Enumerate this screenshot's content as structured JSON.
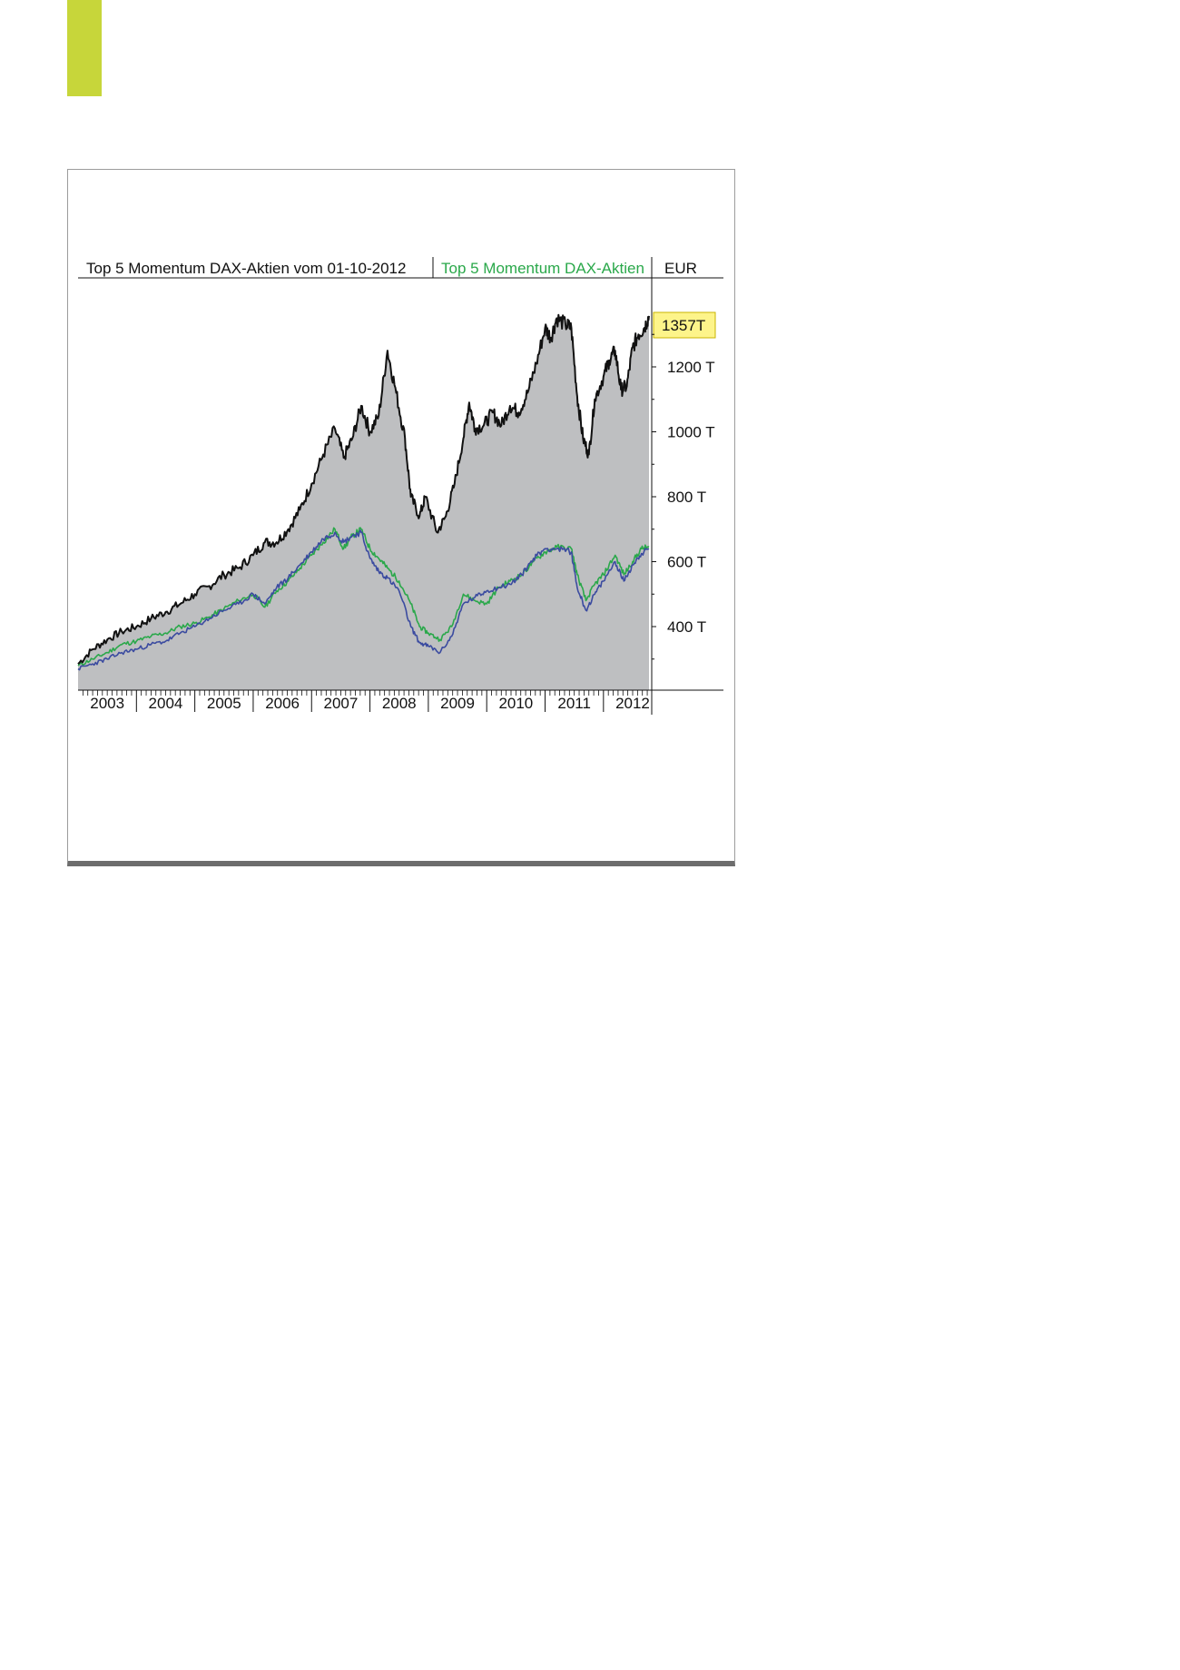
{
  "page": {
    "accent_color": "#c7d63a"
  },
  "chart_data": {
    "type": "area",
    "title": "Top 5 Momentum DAX-Aktien vom 01-10-2012",
    "currency": "EUR",
    "last_value_label": "1357T",
    "yticks": [
      "400 T",
      "600 T",
      "800 T",
      "1000 T",
      "1200 T"
    ],
    "ytick_values": [
      400,
      600,
      800,
      1000,
      1200
    ],
    "ylim": [
      250,
      1400
    ],
    "xlim": [
      2003.0,
      2012.78
    ],
    "xticks": [
      "2003",
      "2004",
      "2005",
      "2006",
      "2007",
      "2008",
      "2009",
      "2010",
      "2011",
      "2012"
    ],
    "colors": {
      "area_fill": "#bebfc1",
      "main_line": "#111111",
      "green_line": "#2aa84a",
      "blue_line": "#3b4ba0",
      "label_highlight": "#fdf48a",
      "green_label": "#2aa84a"
    },
    "series": [
      {
        "name": "Top 5 Momentum DAX-Aktien vom 01-10-2012",
        "color": "#111111",
        "points": [
          [
            2003.0,
            285
          ],
          [
            2003.25,
            330
          ],
          [
            2003.5,
            360
          ],
          [
            2003.75,
            385
          ],
          [
            2004.0,
            400
          ],
          [
            2004.25,
            425
          ],
          [
            2004.5,
            445
          ],
          [
            2004.75,
            470
          ],
          [
            2005.0,
            500
          ],
          [
            2005.25,
            525
          ],
          [
            2005.5,
            560
          ],
          [
            2005.75,
            580
          ],
          [
            2006.0,
            620
          ],
          [
            2006.2,
            660
          ],
          [
            2006.4,
            660
          ],
          [
            2006.6,
            700
          ],
          [
            2006.8,
            760
          ],
          [
            2007.0,
            840
          ],
          [
            2007.2,
            930
          ],
          [
            2007.4,
            1010
          ],
          [
            2007.55,
            920
          ],
          [
            2007.7,
            980
          ],
          [
            2007.85,
            1080
          ],
          [
            2008.0,
            1000
          ],
          [
            2008.15,
            1050
          ],
          [
            2008.3,
            1250
          ],
          [
            2008.45,
            1120
          ],
          [
            2008.6,
            980
          ],
          [
            2008.7,
            800
          ],
          [
            2008.85,
            740
          ],
          [
            2008.95,
            800
          ],
          [
            2009.15,
            690
          ],
          [
            2009.3,
            740
          ],
          [
            2009.45,
            840
          ],
          [
            2009.6,
            980
          ],
          [
            2009.7,
            1090
          ],
          [
            2009.8,
            1010
          ],
          [
            2009.95,
            1020
          ],
          [
            2010.1,
            1060
          ],
          [
            2010.25,
            1020
          ],
          [
            2010.4,
            1080
          ],
          [
            2010.55,
            1060
          ],
          [
            2010.7,
            1120
          ],
          [
            2010.85,
            1210
          ],
          [
            2011.0,
            1320
          ],
          [
            2011.1,
            1290
          ],
          [
            2011.2,
            1350
          ],
          [
            2011.35,
            1330
          ],
          [
            2011.45,
            1320
          ],
          [
            2011.55,
            1110
          ],
          [
            2011.65,
            980
          ],
          [
            2011.75,
            930
          ],
          [
            2011.85,
            1100
          ],
          [
            2012.0,
            1170
          ],
          [
            2012.1,
            1220
          ],
          [
            2012.2,
            1250
          ],
          [
            2012.3,
            1130
          ],
          [
            2012.4,
            1140
          ],
          [
            2012.5,
            1260
          ],
          [
            2012.6,
            1300
          ],
          [
            2012.7,
            1320
          ],
          [
            2012.78,
            1357
          ]
        ]
      },
      {
        "name": "Top 5 Momentum DAX-Aktien",
        "color": "#2aa84a",
        "points": [
          [
            2003.0,
            280
          ],
          [
            2003.25,
            300
          ],
          [
            2003.5,
            320
          ],
          [
            2003.75,
            345
          ],
          [
            2004.0,
            355
          ],
          [
            2004.25,
            370
          ],
          [
            2004.5,
            380
          ],
          [
            2004.75,
            400
          ],
          [
            2005.0,
            410
          ],
          [
            2005.25,
            430
          ],
          [
            2005.5,
            455
          ],
          [
            2005.75,
            480
          ],
          [
            2006.0,
            500
          ],
          [
            2006.2,
            460
          ],
          [
            2006.4,
            510
          ],
          [
            2006.6,
            540
          ],
          [
            2006.8,
            580
          ],
          [
            2007.0,
            620
          ],
          [
            2007.2,
            660
          ],
          [
            2007.4,
            700
          ],
          [
            2007.55,
            640
          ],
          [
            2007.7,
            680
          ],
          [
            2007.85,
            700
          ],
          [
            2008.0,
            640
          ],
          [
            2008.15,
            610
          ],
          [
            2008.3,
            580
          ],
          [
            2008.5,
            540
          ],
          [
            2008.7,
            470
          ],
          [
            2008.85,
            400
          ],
          [
            2009.0,
            380
          ],
          [
            2009.2,
            360
          ],
          [
            2009.4,
            400
          ],
          [
            2009.6,
            500
          ],
          [
            2009.8,
            480
          ],
          [
            2010.0,
            470
          ],
          [
            2010.2,
            520
          ],
          [
            2010.4,
            540
          ],
          [
            2010.6,
            560
          ],
          [
            2010.8,
            600
          ],
          [
            2011.0,
            630
          ],
          [
            2011.2,
            645
          ],
          [
            2011.45,
            640
          ],
          [
            2011.55,
            560
          ],
          [
            2011.7,
            480
          ],
          [
            2011.85,
            530
          ],
          [
            2012.0,
            560
          ],
          [
            2012.2,
            620
          ],
          [
            2012.35,
            560
          ],
          [
            2012.5,
            600
          ],
          [
            2012.65,
            640
          ],
          [
            2012.78,
            645
          ]
        ]
      },
      {
        "name": "",
        "color": "#3b4ba0",
        "points": [
          [
            2003.0,
            270
          ],
          [
            2003.25,
            285
          ],
          [
            2003.5,
            300
          ],
          [
            2003.75,
            320
          ],
          [
            2004.0,
            330
          ],
          [
            2004.25,
            345
          ],
          [
            2004.5,
            355
          ],
          [
            2004.75,
            380
          ],
          [
            2005.0,
            400
          ],
          [
            2005.25,
            425
          ],
          [
            2005.5,
            450
          ],
          [
            2005.75,
            470
          ],
          [
            2006.0,
            500
          ],
          [
            2006.2,
            470
          ],
          [
            2006.4,
            520
          ],
          [
            2006.6,
            550
          ],
          [
            2006.8,
            590
          ],
          [
            2007.0,
            630
          ],
          [
            2007.2,
            670
          ],
          [
            2007.4,
            690
          ],
          [
            2007.55,
            660
          ],
          [
            2007.7,
            680
          ],
          [
            2007.85,
            690
          ],
          [
            2008.0,
            610
          ],
          [
            2008.15,
            570
          ],
          [
            2008.3,
            550
          ],
          [
            2008.5,
            510
          ],
          [
            2008.7,
            400
          ],
          [
            2008.85,
            350
          ],
          [
            2009.0,
            340
          ],
          [
            2009.2,
            320
          ],
          [
            2009.4,
            370
          ],
          [
            2009.6,
            470
          ],
          [
            2009.8,
            490
          ],
          [
            2010.0,
            510
          ],
          [
            2010.2,
            520
          ],
          [
            2010.4,
            530
          ],
          [
            2010.6,
            560
          ],
          [
            2010.8,
            610
          ],
          [
            2011.0,
            640
          ],
          [
            2011.2,
            640
          ],
          [
            2011.45,
            630
          ],
          [
            2011.55,
            520
          ],
          [
            2011.7,
            450
          ],
          [
            2011.85,
            500
          ],
          [
            2012.0,
            540
          ],
          [
            2012.2,
            600
          ],
          [
            2012.35,
            540
          ],
          [
            2012.5,
            590
          ],
          [
            2012.65,
            625
          ],
          [
            2012.78,
            640
          ]
        ]
      }
    ]
  }
}
